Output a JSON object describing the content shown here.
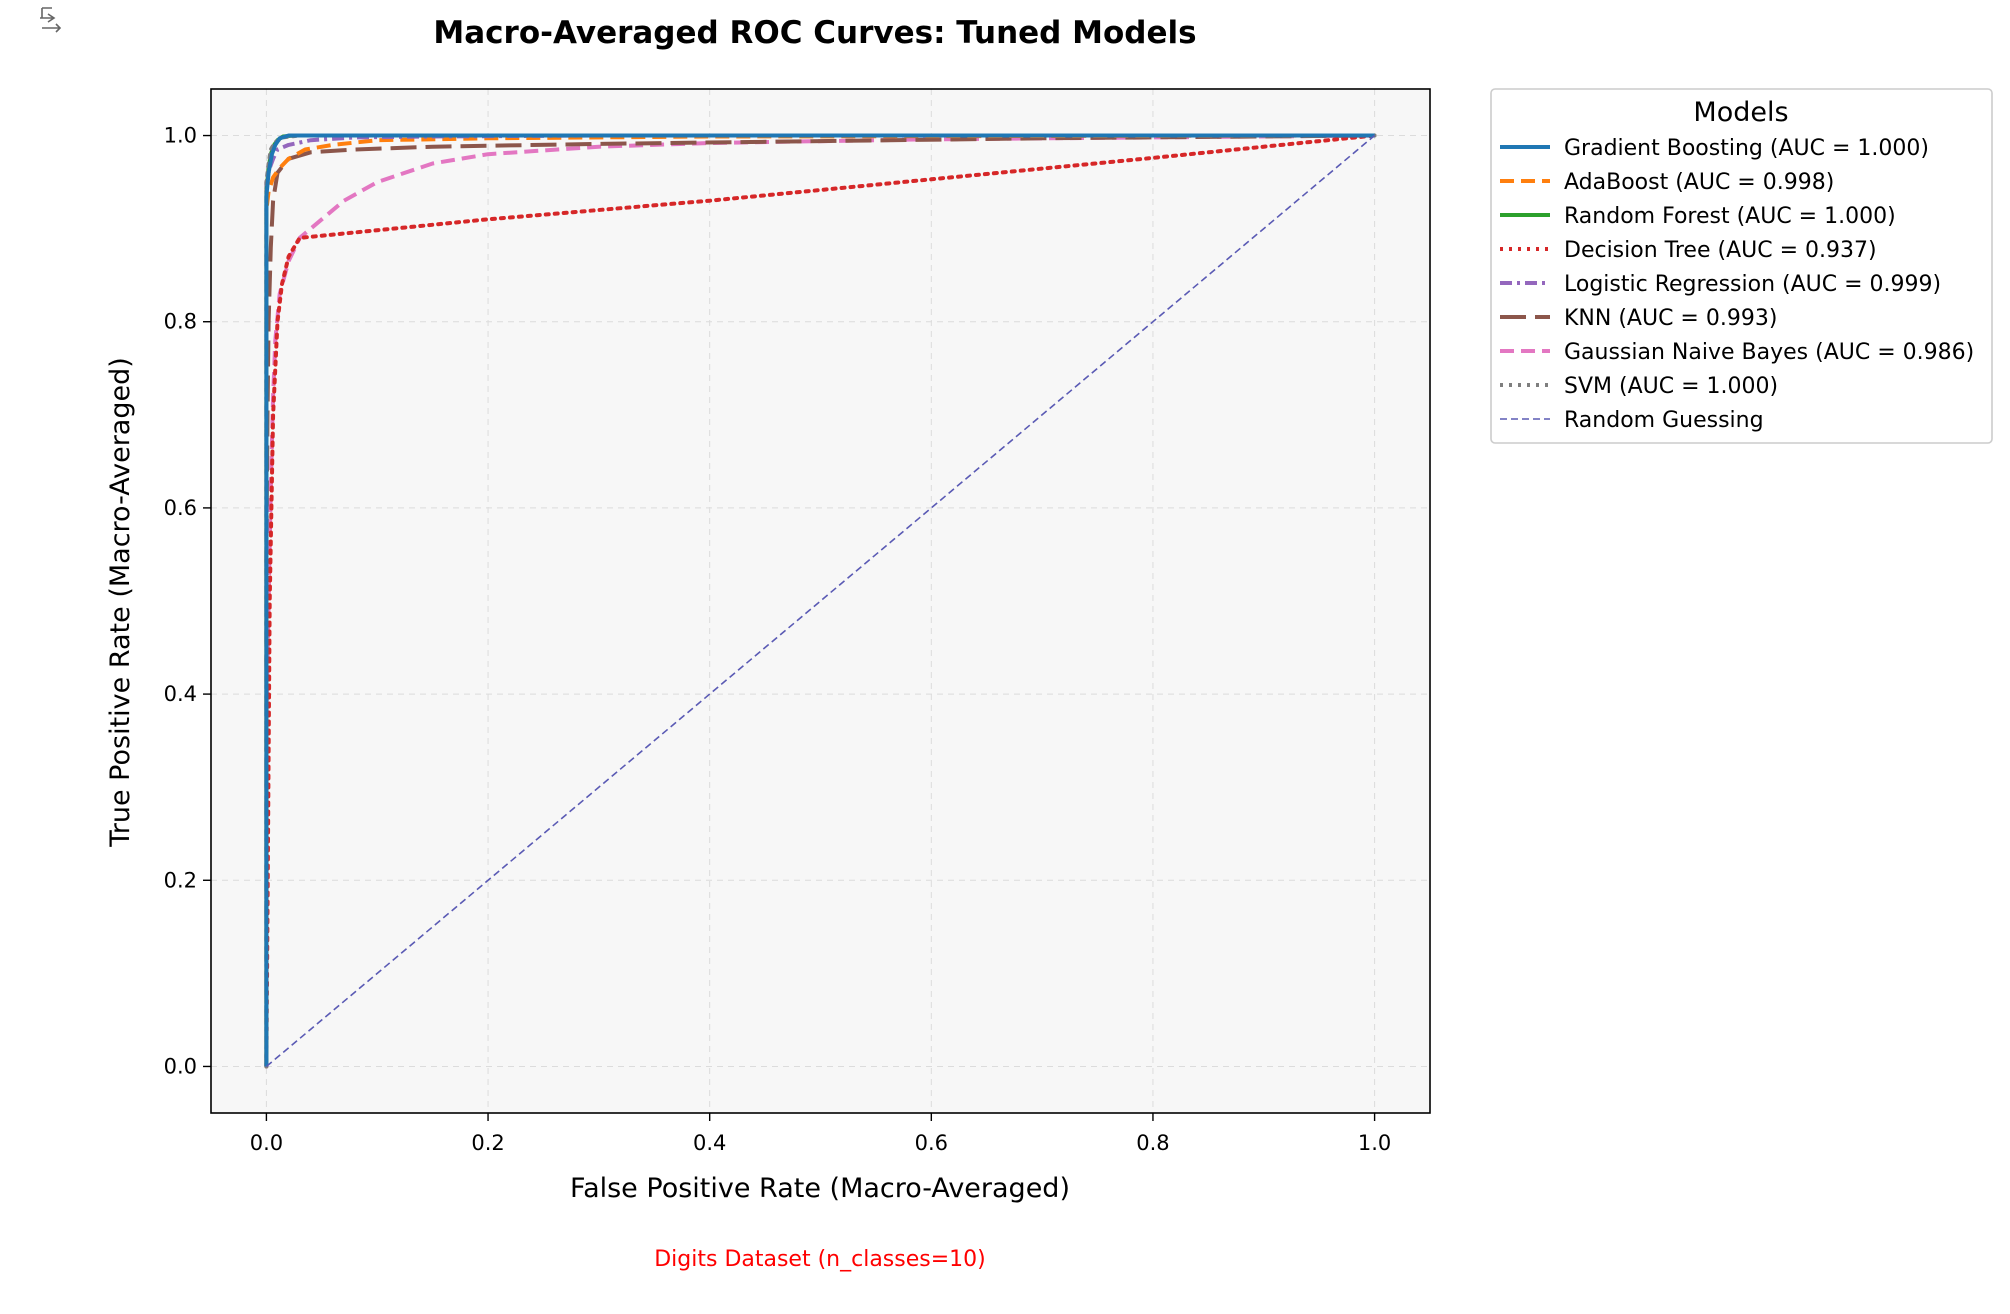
{
  "chart_data": {
    "type": "line",
    "title": "Macro-Averaged ROC Curves: Tuned Models",
    "xlabel": "False Positive Rate (Macro-Averaged)",
    "ylabel": "True Positive Rate (Macro-Averaged)",
    "footnote": "Digits Dataset (n_classes=10)",
    "footnote_color": "#ff0000",
    "xlim": [
      -0.05,
      1.05
    ],
    "ylim": [
      -0.05,
      1.05
    ],
    "xticks": [
      0.0,
      0.2,
      0.4,
      0.6,
      0.8,
      1.0
    ],
    "yticks": [
      0.0,
      0.2,
      0.4,
      0.6,
      0.8,
      1.0
    ],
    "tick_labels_x": [
      "0.0",
      "0.2",
      "0.4",
      "0.6",
      "0.8",
      "1.0"
    ],
    "tick_labels_y": [
      "0.0",
      "0.2",
      "0.4",
      "0.6",
      "0.8",
      "1.0"
    ],
    "grid": true,
    "plot_background": "#f7f7f7",
    "legend": {
      "title": "Models",
      "placement": "outside upper right"
    },
    "series": [
      {
        "name": "Gradient Boosting (AUC = 1.000)",
        "color": "#1f77b4",
        "style": "solid",
        "width": 4,
        "x": [
          0,
          0,
          0.002,
          0.005,
          0.008,
          0.012,
          0.02,
          0.05,
          1.0
        ],
        "y": [
          0,
          0.935,
          0.96,
          0.98,
          0.99,
          0.997,
          1.0,
          1.0,
          1.0
        ]
      },
      {
        "name": "AdaBoost (AUC = 0.998)",
        "color": "#ff7f0e",
        "style": "dashed",
        "width": 4,
        "x": [
          0,
          0,
          0.002,
          0.006,
          0.012,
          0.02,
          0.035,
          0.06,
          0.1,
          0.2,
          0.4,
          1.0
        ],
        "y": [
          0,
          0.92,
          0.94,
          0.955,
          0.965,
          0.975,
          0.985,
          0.99,
          0.995,
          0.997,
          0.999,
          1.0
        ]
      },
      {
        "name": "Random Forest (AUC = 1.000)",
        "color": "#2ca02c",
        "style": "solid",
        "width": 4,
        "x": [
          0,
          0,
          0.002,
          0.004,
          0.007,
          0.01,
          0.015,
          0.025,
          1.0
        ],
        "y": [
          0,
          0.94,
          0.965,
          0.98,
          0.99,
          0.995,
          0.999,
          1.0,
          1.0
        ]
      },
      {
        "name": "Decision Tree (AUC = 0.937)",
        "color": "#d62728",
        "style": "dotted",
        "width": 4,
        "x": [
          0,
          0.0,
          0.003,
          0.006,
          0.01,
          0.014,
          0.02,
          0.03,
          0.2,
          0.4,
          0.6,
          0.8,
          1.0
        ],
        "y": [
          0,
          0.0,
          0.5,
          0.7,
          0.8,
          0.84,
          0.87,
          0.89,
          0.91,
          0.93,
          0.953,
          0.976,
          1.0
        ]
      },
      {
        "name": "Logistic Regression (AUC = 0.999)",
        "color": "#9467bd",
        "style": "dashdot",
        "width": 4,
        "x": [
          0,
          0,
          0.003,
          0.006,
          0.01,
          0.02,
          0.04,
          0.08,
          0.15,
          0.3,
          1.0
        ],
        "y": [
          0,
          0.95,
          0.965,
          0.975,
          0.985,
          0.99,
          0.995,
          0.998,
          0.999,
          1.0,
          1.0
        ]
      },
      {
        "name": "KNN (AUC = 0.993)",
        "color": "#8c564b",
        "style": "longdash",
        "width": 4,
        "x": [
          0,
          0,
          0.001,
          0.002,
          0.004,
          0.006,
          0.01,
          0.02,
          0.04,
          0.08,
          0.15,
          0.3,
          0.5,
          0.7,
          1.0
        ],
        "y": [
          0,
          0.55,
          0.7,
          0.8,
          0.88,
          0.93,
          0.96,
          0.975,
          0.982,
          0.985,
          0.988,
          0.991,
          0.994,
          0.997,
          1.0
        ]
      },
      {
        "name": "Gaussian Naive Bayes (AUC = 0.986)",
        "color": "#e377c2",
        "style": "dashed",
        "width": 4,
        "x": [
          0,
          0,
          0.002,
          0.004,
          0.006,
          0.008,
          0.012,
          0.02,
          0.03,
          0.05,
          0.07,
          0.1,
          0.15,
          0.2,
          0.3,
          0.4,
          0.6,
          0.8,
          1.0
        ],
        "y": [
          0.37,
          0.37,
          0.5,
          0.62,
          0.72,
          0.78,
          0.83,
          0.865,
          0.89,
          0.91,
          0.93,
          0.95,
          0.97,
          0.98,
          0.988,
          0.992,
          0.996,
          0.998,
          1.0
        ]
      },
      {
        "name": "SVM (AUC = 1.000)",
        "color": "#7f7f7f",
        "style": "dotted",
        "width": 4,
        "x": [
          0,
          0,
          0.002,
          0.004,
          0.008,
          0.015,
          0.03,
          1.0
        ],
        "y": [
          0,
          0.95,
          0.97,
          0.985,
          0.993,
          0.998,
          1.0,
          1.0
        ]
      },
      {
        "name": "Random Guessing",
        "color": "#5a5ab4",
        "style": "thin-dashed",
        "width": 1.6,
        "x": [
          0,
          1
        ],
        "y": [
          0,
          1
        ]
      }
    ]
  }
}
